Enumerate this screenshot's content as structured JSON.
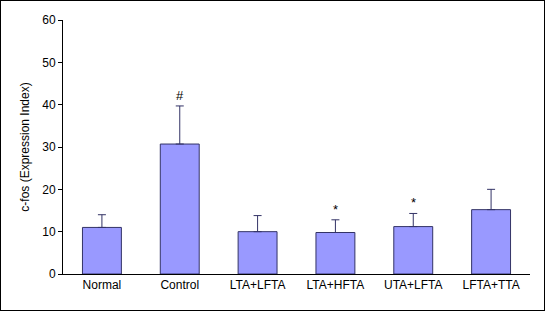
{
  "chart_data": {
    "type": "bar",
    "y_label": "c-fos (Expression Index)",
    "categories": [
      "Normal",
      "Control",
      "LTA+LFTA",
      "LTA+HFTA",
      "UTA+LFTA",
      "LFTA+TTA"
    ],
    "values": [
      11,
      30.7,
      10,
      9.8,
      11.2,
      15.2
    ],
    "errors": [
      3,
      9,
      3.8,
      3,
      3.1,
      4.8
    ],
    "color": "#9999ff",
    "ylim": [
      0,
      60
    ],
    "yticks": [
      0,
      10,
      20,
      30,
      40,
      50,
      60
    ],
    "grid": false,
    "annotations": [
      {
        "category": "Control",
        "text": "#"
      },
      {
        "category": "LTA+HFTA",
        "text": "*"
      },
      {
        "category": "UTA+LFTA",
        "text": "*"
      }
    ]
  }
}
